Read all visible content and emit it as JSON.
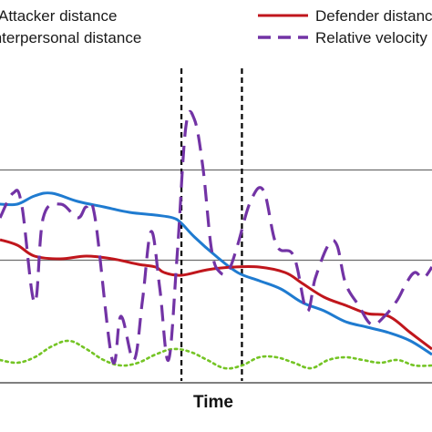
{
  "chart_data": {
    "type": "line",
    "title": "",
    "xlabel": "Time",
    "ylabel": "",
    "grid": "horizontal",
    "legend_position": "top",
    "xlim": [
      0,
      100
    ],
    "ylim": [
      0,
      100
    ],
    "markers": [
      {
        "name": "event-marker-1",
        "x": 42,
        "style": "dashed",
        "color": "#000000"
      },
      {
        "name": "event-marker-2",
        "x": 56,
        "style": "dashed",
        "color": "#000000"
      }
    ],
    "gridlines_y": [
      36.5,
      69.5
    ],
    "series": [
      {
        "name": "Attacker distance",
        "color": "#1f7bd0",
        "dash": "solid",
        "points": [
          [
            0,
            57
          ],
          [
            4,
            57
          ],
          [
            8,
            60
          ],
          [
            12,
            61
          ],
          [
            18,
            58
          ],
          [
            24,
            56
          ],
          [
            30,
            54
          ],
          [
            36,
            53
          ],
          [
            40,
            52
          ],
          [
            42,
            50
          ],
          [
            45,
            45
          ],
          [
            50,
            38
          ],
          [
            55,
            32
          ],
          [
            60,
            29
          ],
          [
            65,
            26
          ],
          [
            70,
            21
          ],
          [
            75,
            18
          ],
          [
            80,
            14
          ],
          [
            85,
            12
          ],
          [
            90,
            10
          ],
          [
            95,
            7
          ],
          [
            100,
            2
          ]
        ]
      },
      {
        "name": "Defender distance",
        "color": "#c0161c",
        "dash": "solid",
        "points": [
          [
            0,
            44
          ],
          [
            4,
            42
          ],
          [
            8,
            38
          ],
          [
            14,
            37
          ],
          [
            20,
            38
          ],
          [
            26,
            37
          ],
          [
            32,
            35
          ],
          [
            36,
            34
          ],
          [
            38,
            32
          ],
          [
            42,
            31
          ],
          [
            48,
            33
          ],
          [
            54,
            34
          ],
          [
            60,
            34
          ],
          [
            66,
            32
          ],
          [
            70,
            28
          ],
          [
            75,
            23
          ],
          [
            80,
            20
          ],
          [
            85,
            17
          ],
          [
            90,
            16
          ],
          [
            95,
            10
          ],
          [
            100,
            4
          ]
        ]
      },
      {
        "name": "Interpersonal distance",
        "color": "#74c424",
        "dash": "dotted",
        "points": [
          [
            0,
            0
          ],
          [
            4,
            -1
          ],
          [
            8,
            1
          ],
          [
            12,
            5
          ],
          [
            16,
            7
          ],
          [
            20,
            4
          ],
          [
            24,
            0
          ],
          [
            28,
            -2
          ],
          [
            32,
            -1
          ],
          [
            36,
            2
          ],
          [
            40,
            4
          ],
          [
            44,
            3
          ],
          [
            48,
            0
          ],
          [
            52,
            -3
          ],
          [
            56,
            -2
          ],
          [
            60,
            1
          ],
          [
            64,
            1
          ],
          [
            68,
            -1
          ],
          [
            72,
            -3
          ],
          [
            76,
            0
          ],
          [
            80,
            1
          ],
          [
            84,
            0
          ],
          [
            88,
            -1
          ],
          [
            92,
            0
          ],
          [
            96,
            -2
          ],
          [
            100,
            -2
          ]
        ]
      },
      {
        "name": "Relative velocity",
        "color": "#7233a5",
        "dash": "dashed",
        "points": [
          [
            0,
            52
          ],
          [
            3,
            61
          ],
          [
            5,
            57
          ],
          [
            8,
            21
          ],
          [
            10,
            52
          ],
          [
            14,
            57
          ],
          [
            18,
            52
          ],
          [
            20,
            56
          ],
          [
            22,
            52
          ],
          [
            26,
            0
          ],
          [
            28,
            16
          ],
          [
            31,
            0
          ],
          [
            33,
            22
          ],
          [
            35,
            47
          ],
          [
            37,
            26
          ],
          [
            39,
            0
          ],
          [
            41,
            38
          ],
          [
            43,
            85
          ],
          [
            45,
            88
          ],
          [
            47,
            70
          ],
          [
            49,
            40
          ],
          [
            51,
            32
          ],
          [
            53,
            33
          ],
          [
            55,
            42
          ],
          [
            58,
            58
          ],
          [
            61,
            62
          ],
          [
            64,
            42
          ],
          [
            68,
            38
          ],
          [
            71,
            18
          ],
          [
            73,
            30
          ],
          [
            76,
            42
          ],
          [
            78,
            42
          ],
          [
            80,
            28
          ],
          [
            83,
            20
          ],
          [
            86,
            13
          ],
          [
            89,
            16
          ],
          [
            92,
            22
          ],
          [
            94,
            28
          ],
          [
            96,
            32
          ],
          [
            98,
            30
          ],
          [
            100,
            34
          ]
        ]
      }
    ]
  }
}
